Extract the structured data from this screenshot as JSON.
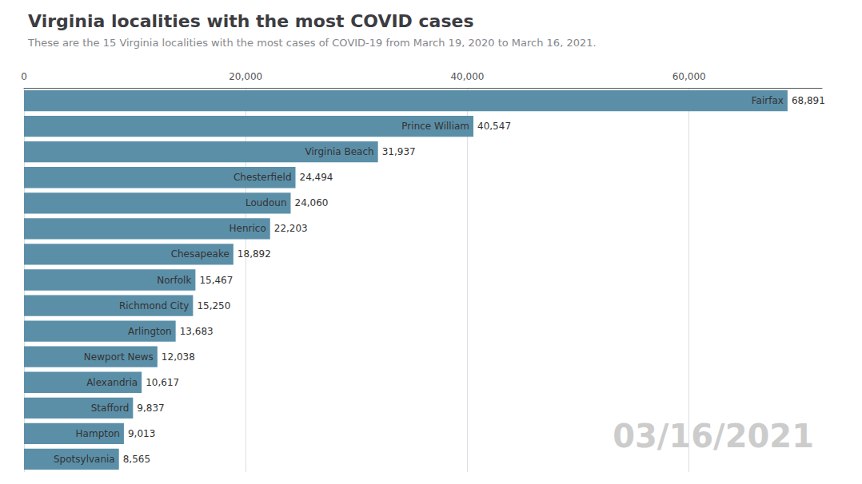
{
  "chart_data": {
    "type": "bar",
    "orientation": "horizontal",
    "title": "Virginia localities with the most COVID cases",
    "subtitle": "These are the 15 Virginia localities with the most cases of COVID-19 from March 19, 2020 to March 16, 2021.",
    "annotations": [
      {
        "text": "03/16/2021",
        "color": "#cccccc"
      }
    ],
    "categories": [
      "Fairfax",
      "Prince William",
      "Virginia Beach",
      "Chesterfield",
      "Loudoun",
      "Henrico",
      "Chesapeake",
      "Norfolk",
      "Richmond City",
      "Arlington",
      "Newport News",
      "Alexandria",
      "Stafford",
      "Hampton",
      "Spotsylvania"
    ],
    "values": [
      68891,
      40547,
      31937,
      24494,
      24060,
      22203,
      18892,
      15467,
      15250,
      13683,
      12038,
      10617,
      9837,
      9013,
      8565
    ],
    "value_labels": [
      "68,891",
      "40,547",
      "31,937",
      "24,494",
      "24,060",
      "22,203",
      "18,892",
      "15,467",
      "15,250",
      "13,683",
      "12,038",
      "10,617",
      "9,837",
      "9,013",
      "8,565"
    ],
    "data_labels": true,
    "color": "#5b8fa8",
    "xlim": [
      0,
      72000
    ],
    "xticks": [
      0,
      {
        "value": 20000,
        "label": "20,000"
      },
      {
        "value": 40000,
        "label": "40,000"
      },
      {
        "value": 60000,
        "label": "60,000"
      }
    ],
    "grid": true,
    "tick_labels": "x"
  }
}
